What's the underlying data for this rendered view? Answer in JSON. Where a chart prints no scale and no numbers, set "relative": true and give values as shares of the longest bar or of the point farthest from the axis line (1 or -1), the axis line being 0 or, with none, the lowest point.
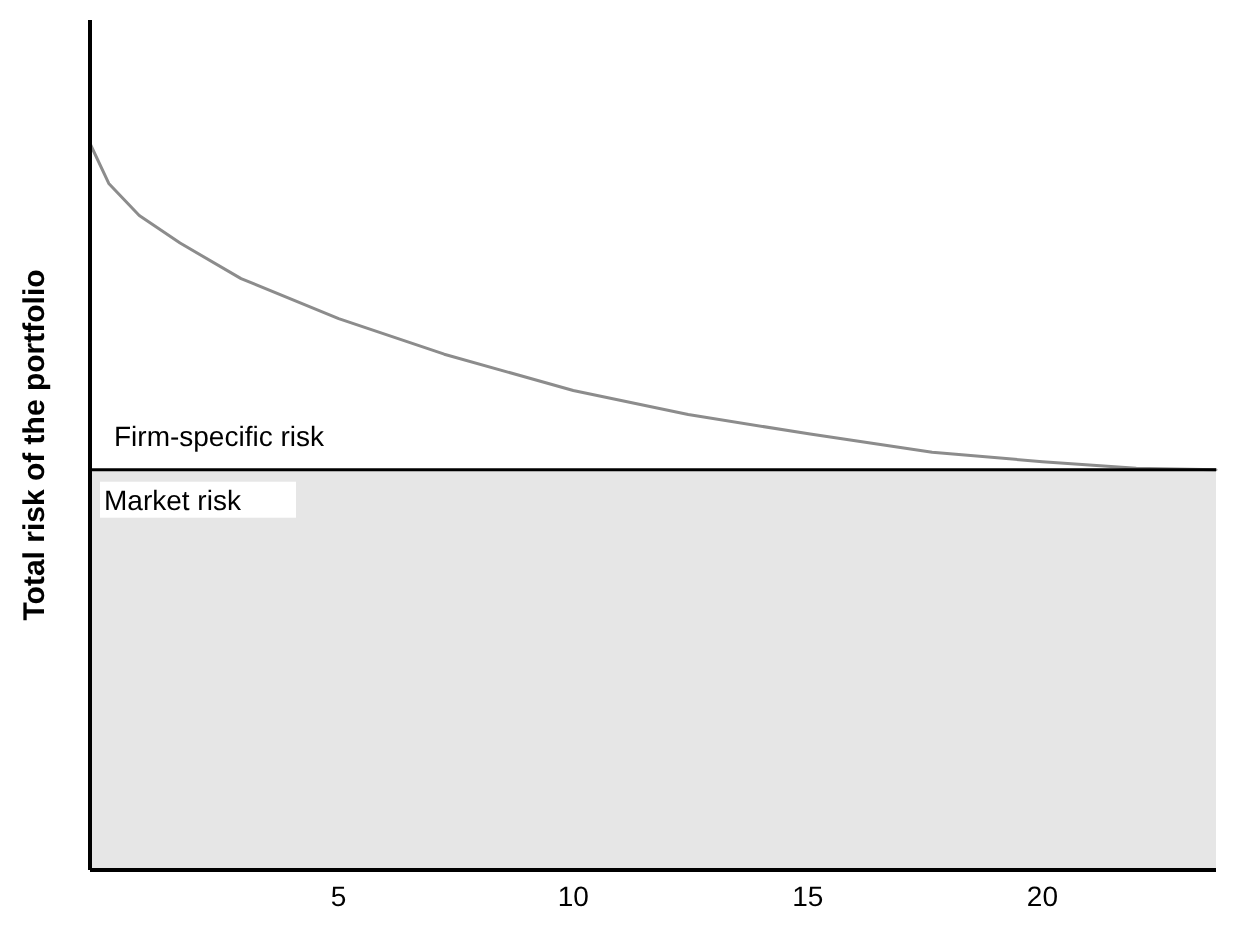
{
  "chart_data": {
    "type": "line",
    "relative": true,
    "ylabel": "Total risk of the portfolio",
    "x": [
      -0.3,
      0.1,
      0.75,
      1.62,
      2.92,
      5,
      7.25,
      10,
      12.45,
      15.05,
      17.65,
      20,
      22,
      23.7
    ],
    "series": [
      {
        "color": "#8c8c8c",
        "values": [
          1,
          0.945,
          0.901,
          0.863,
          0.814,
          0.759,
          0.71,
          0.66,
          0.627,
          0.6,
          0.575,
          0.562,
          0.553,
          0.551
        ]
      }
    ],
    "xlim": [
      -0.3,
      23.7
    ],
    "xticks": [
      5,
      10,
      15,
      20
    ],
    "ref_lines": [
      {
        "axis": "y",
        "value": 0.551,
        "color": "#000000"
      }
    ],
    "bands": [
      {
        "axis": "y",
        "from": 0,
        "to": 0.551,
        "color": "#e6e6e6"
      }
    ],
    "annotations": [
      "Firm-specific risk",
      "Market risk"
    ],
    "grid": false,
    "marker": "none",
    "line_style": "solid"
  }
}
